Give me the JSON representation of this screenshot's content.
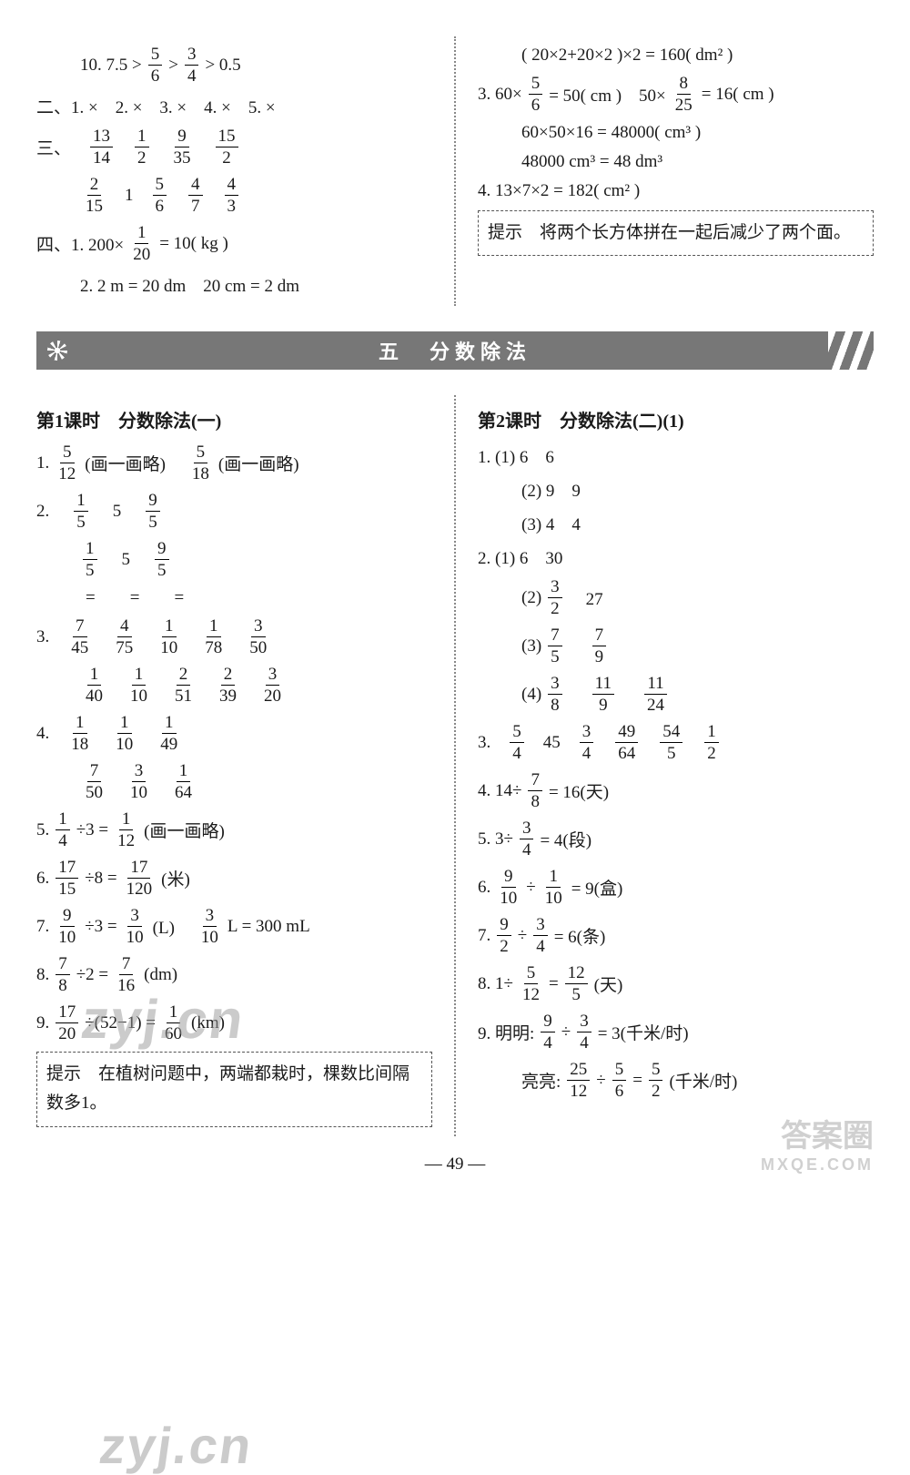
{
  "top": {
    "left": {
      "l10": [
        "10. 7.5 >",
        {
          "n": "5",
          "d": "6"
        },
        ">",
        {
          "n": "3",
          "d": "4"
        },
        "> 0.5"
      ],
      "sec2": "二、1. ×　2. ×　3. ×　4. ×　5. ×",
      "sec3r1": [
        "三、",
        {
          "n": "13",
          "d": "14"
        },
        {
          "n": "1",
          "d": "2"
        },
        {
          "n": "9",
          "d": "35"
        },
        {
          "n": "15",
          "d": "2"
        }
      ],
      "sec3r2": [
        {
          "n": "2",
          "d": "15"
        },
        "1",
        {
          "n": "5",
          "d": "6"
        },
        {
          "n": "4",
          "d": "7"
        },
        {
          "n": "4",
          "d": "3"
        }
      ],
      "sec4_1": [
        "四、1. 200×",
        {
          "n": "1",
          "d": "20"
        },
        "= 10( kg )"
      ],
      "sec4_2": "2. 2 m = 20 dm　20 cm = 2 dm"
    },
    "right": {
      "r1": "( 20×2+20×2 )×2 = 160( dm² )",
      "r2a": [
        "3. 60×",
        {
          "n": "5",
          "d": "6"
        },
        "= 50( cm )　50×",
        {
          "n": "8",
          "d": "25"
        },
        "= 16( cm )"
      ],
      "r2b": "60×50×16 = 48000( cm³ )",
      "r2c": "48000 cm³ = 48 dm³",
      "r3": "4. 13×7×2 = 182( cm² )",
      "hint": "提示　将两个长方体拼在一起后减少了两个面。"
    }
  },
  "banner": "五　分数除法",
  "lesson1": {
    "title": "第1课时　分数除法(一)",
    "l1": [
      "1. ",
      {
        "n": "5",
        "d": "12"
      },
      "(画一画略)　",
      {
        "n": "5",
        "d": "18"
      },
      "(画一画略)"
    ],
    "l2r1": [
      "2. ",
      {
        "n": "1",
        "d": "5"
      },
      "5",
      {
        "n": "9",
        "d": "5"
      }
    ],
    "l2r2": [
      {
        "n": "1",
        "d": "5"
      },
      "5",
      {
        "n": "9",
        "d": "5"
      }
    ],
    "l2r3": [
      "=",
      "=",
      "="
    ],
    "l3r1": [
      "3. ",
      {
        "n": "7",
        "d": "45"
      },
      {
        "n": "4",
        "d": "75"
      },
      {
        "n": "1",
        "d": "10"
      },
      {
        "n": "1",
        "d": "78"
      },
      {
        "n": "3",
        "d": "50"
      }
    ],
    "l3r2": [
      {
        "n": "1",
        "d": "40"
      },
      {
        "n": "1",
        "d": "10"
      },
      {
        "n": "2",
        "d": "51"
      },
      {
        "n": "2",
        "d": "39"
      },
      {
        "n": "3",
        "d": "20"
      }
    ],
    "l4r1": [
      "4. ",
      {
        "n": "1",
        "d": "18"
      },
      {
        "n": "1",
        "d": "10"
      },
      {
        "n": "1",
        "d": "49"
      }
    ],
    "l4r2": [
      {
        "n": "7",
        "d": "50"
      },
      {
        "n": "3",
        "d": "10"
      },
      {
        "n": "1",
        "d": "64"
      }
    ],
    "l5": [
      "5. ",
      {
        "n": "1",
        "d": "4"
      },
      "÷3 =",
      {
        "n": "1",
        "d": "12"
      },
      "(画一画略)"
    ],
    "l6": [
      "6. ",
      {
        "n": "17",
        "d": "15"
      },
      "÷8 =",
      {
        "n": "17",
        "d": "120"
      },
      "(米)"
    ],
    "l7": [
      "7. ",
      {
        "n": "9",
        "d": "10"
      },
      "÷3 =",
      {
        "n": "3",
        "d": "10"
      },
      "(L)　",
      {
        "n": "3",
        "d": "10"
      },
      " L = 300 mL"
    ],
    "l8": [
      "8. ",
      {
        "n": "7",
        "d": "8"
      },
      "÷2 =",
      {
        "n": "7",
        "d": "16"
      },
      "(dm)"
    ],
    "l9": [
      "9. ",
      {
        "n": "17",
        "d": "20"
      },
      "÷(52−1) =",
      {
        "n": "1",
        "d": "60"
      },
      "(km)"
    ],
    "hint": "提示　在植树问题中，两端都栽时，棵数比间隔数多1。"
  },
  "lesson2": {
    "title": "第2课时　分数除法(二)(1)",
    "l1_1": "1. (1) 6　6",
    "l1_2": "(2) 9　9",
    "l1_3": "(3) 4　4",
    "l2_1": "2. (1) 6　30",
    "l2_2": [
      "(2) ",
      {
        "n": "3",
        "d": "2"
      },
      "　27"
    ],
    "l2_3": [
      "(3) ",
      {
        "n": "7",
        "d": "5"
      },
      "　",
      {
        "n": "7",
        "d": "9"
      }
    ],
    "l2_4": [
      "(4) ",
      {
        "n": "3",
        "d": "8"
      },
      "　",
      {
        "n": "11",
        "d": "9"
      },
      "　",
      {
        "n": "11",
        "d": "24"
      }
    ],
    "l3": [
      "3. ",
      {
        "n": "5",
        "d": "4"
      },
      "45",
      {
        "n": "3",
        "d": "4"
      },
      {
        "n": "49",
        "d": "64"
      },
      {
        "n": "54",
        "d": "5"
      },
      {
        "n": "1",
        "d": "2"
      }
    ],
    "l4": [
      "4. 14÷",
      {
        "n": "7",
        "d": "8"
      },
      "= 16(天)"
    ],
    "l5": [
      "5. 3÷",
      {
        "n": "3",
        "d": "4"
      },
      "= 4(段)"
    ],
    "l6": [
      "6. ",
      {
        "n": "9",
        "d": "10"
      },
      "÷",
      {
        "n": "1",
        "d": "10"
      },
      "= 9(盒)"
    ],
    "l7": [
      "7. ",
      {
        "n": "9",
        "d": "2"
      },
      "÷",
      {
        "n": "3",
        "d": "4"
      },
      "= 6(条)"
    ],
    "l8": [
      "8. 1÷",
      {
        "n": "5",
        "d": "12"
      },
      "=",
      {
        "n": "12",
        "d": "5"
      },
      "(天)"
    ],
    "l9a": [
      "9. 明明:",
      {
        "n": "9",
        "d": "4"
      },
      "÷",
      {
        "n": "3",
        "d": "4"
      },
      "= 3(千米/时)"
    ],
    "l9b": [
      "亮亮:",
      {
        "n": "25",
        "d": "12"
      },
      "÷",
      {
        "n": "5",
        "d": "6"
      },
      "=",
      {
        "n": "5",
        "d": "2"
      },
      "(千米/时)"
    ]
  },
  "page": "— 49 —",
  "wm1": "zyj.cn",
  "wm2": "zyj.cn",
  "wm3a": "答案圈",
  "wm3b": "MXQE.COM"
}
